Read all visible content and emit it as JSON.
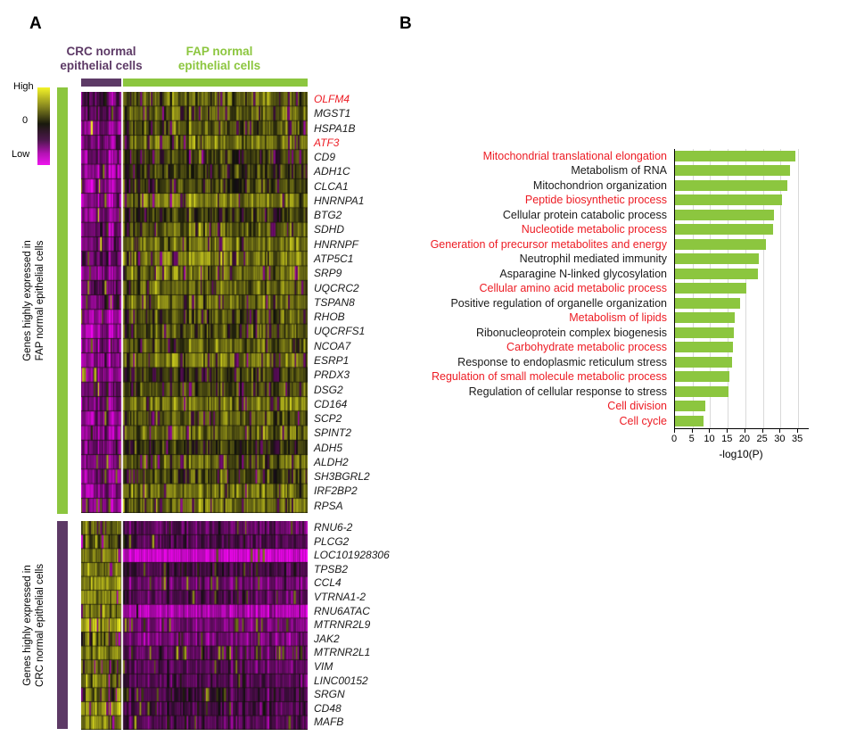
{
  "figure": {
    "panel_a_label": "A",
    "panel_b_label": "B"
  },
  "colors": {
    "green": "#8cc63f",
    "purple": "#5d3a66",
    "red_text": "#ed1c24",
    "heat_high": "#f0f022",
    "heat_mid": "#141408",
    "heat_low": "#ee10ee"
  },
  "panel_a": {
    "col_group_labels": {
      "crc": "CRC normal\nepithelial cells",
      "fap": "FAP normal\nepithelial cells"
    },
    "legend": {
      "high": "High",
      "mid": "0",
      "low": "Low"
    },
    "row_group_labels": {
      "fap": "Genes highly expressed in\nFAP normal epithelial cells",
      "crc": "Genes highly expressed in\nCRC normal epithelial cells"
    }
  },
  "chart_data": [
    {
      "type": "heatmap",
      "colormap": {
        "high_label": "High",
        "mid_label": "0",
        "low_label": "Low",
        "high": "#f0f022",
        "mid": "#141408",
        "low": "#ee10ee"
      },
      "col_groups": [
        {
          "label": "CRC normal epithelial cells",
          "color": "#5d3a66"
        },
        {
          "label": "FAP normal epithelial cells",
          "color": "#8cc63f"
        }
      ],
      "row_groups": [
        {
          "label": "Genes highly expressed in FAP normal epithelial cells",
          "color": "#8cc63f",
          "genes": [
            "OLFM4",
            "MGST1",
            "HSPA1B",
            "ATF3",
            "CD9",
            "ADH1C",
            "CLCA1",
            "HNRNPA1",
            "BTG2",
            "SDHD",
            "HNRNPF",
            "ATP5C1",
            "SRP9",
            "UQCRC2",
            "TSPAN8",
            "RHOB",
            "UQCRFS1",
            "NCOA7",
            "ESRP1",
            "PRDX3",
            "DSG2",
            "CD164",
            "SCP2",
            "SPINT2",
            "ADH5",
            "ALDH2",
            "SH3BGRL2",
            "IRF2BP2",
            "RPSA"
          ],
          "red_genes": [
            "OLFM4",
            "ATF3"
          ],
          "pattern": {
            "crc": {
              "bias": -0.55,
              "sigma": 0.34,
              "outlier_p": 0.05
            },
            "fap": {
              "bias": 0.33,
              "sigma": 0.3,
              "outlier_p": 0.09
            }
          }
        },
        {
          "label": "Genes highly expressed in CRC normal epithelial cells",
          "color": "#5d3a66",
          "genes": [
            "RNU6-2",
            "PLCG2",
            "LOC101928306",
            "TPSB2",
            "CCL4",
            "VTRNA1-2",
            "RNU6ATAC",
            "MTRNR2L9",
            "JAK2",
            "MTRNR2L1",
            "VIM",
            "LINC00152",
            "SRGN",
            "CD48",
            "MAFB"
          ],
          "red_genes": [],
          "pattern": {
            "crc": {
              "bias": 0.55,
              "sigma": 0.36,
              "outlier_p": 0.07
            },
            "fap": {
              "bias": -0.38,
              "sigma": 0.22,
              "outlier_p": 0.04,
              "row_bias": {
                "2": -0.45,
                "6": -0.3
              },
              "row_outlier": {
                "7": 0.1,
                "9": 0.1
              }
            }
          }
        }
      ]
    },
    {
      "type": "bar",
      "orientation": "horizontal",
      "categories": [
        "Mitochondrial translational elongation",
        "Metabolism of RNA",
        "Mitochondrion organization",
        "Peptide biosynthetic process",
        "Cellular protein catabolic process",
        "Nucleotide metabolic process",
        "Generation of precursor metabolites and energy",
        "Neutrophil mediated immunity",
        "Asparagine N-linked glycosylation",
        "Cellular amino acid metabolic process",
        "Positive regulation of organelle organization",
        "Metabolism of lipids",
        "Ribonucleoprotein complex biogenesis",
        "Carbohydrate metabolic process",
        "Response to endoplasmic reticulum stress",
        "Regulation of small molecule metabolic process",
        "Regulation of cellular response to stress",
        "Cell division",
        "Cell cycle"
      ],
      "values": [
        34.3,
        32.6,
        31.8,
        30.5,
        28.1,
        27.8,
        25.8,
        23.7,
        23.5,
        20.2,
        18.6,
        16.9,
        16.7,
        16.5,
        16.3,
        15.5,
        15.2,
        8.6,
        8.2
      ],
      "label_colors": [
        "red",
        "black",
        "black",
        "red",
        "black",
        "red",
        "red",
        "black",
        "black",
        "red",
        "black",
        "red",
        "black",
        "red",
        "black",
        "red",
        "black",
        "red",
        "red"
      ],
      "xlabel": "-log10(P)",
      "xticks": [
        0,
        5,
        10,
        15,
        20,
        25,
        30,
        35
      ],
      "xlim": [
        0,
        38
      ],
      "bar_color": "#8cc63f",
      "grid": true,
      "legend_position": "none"
    }
  ]
}
